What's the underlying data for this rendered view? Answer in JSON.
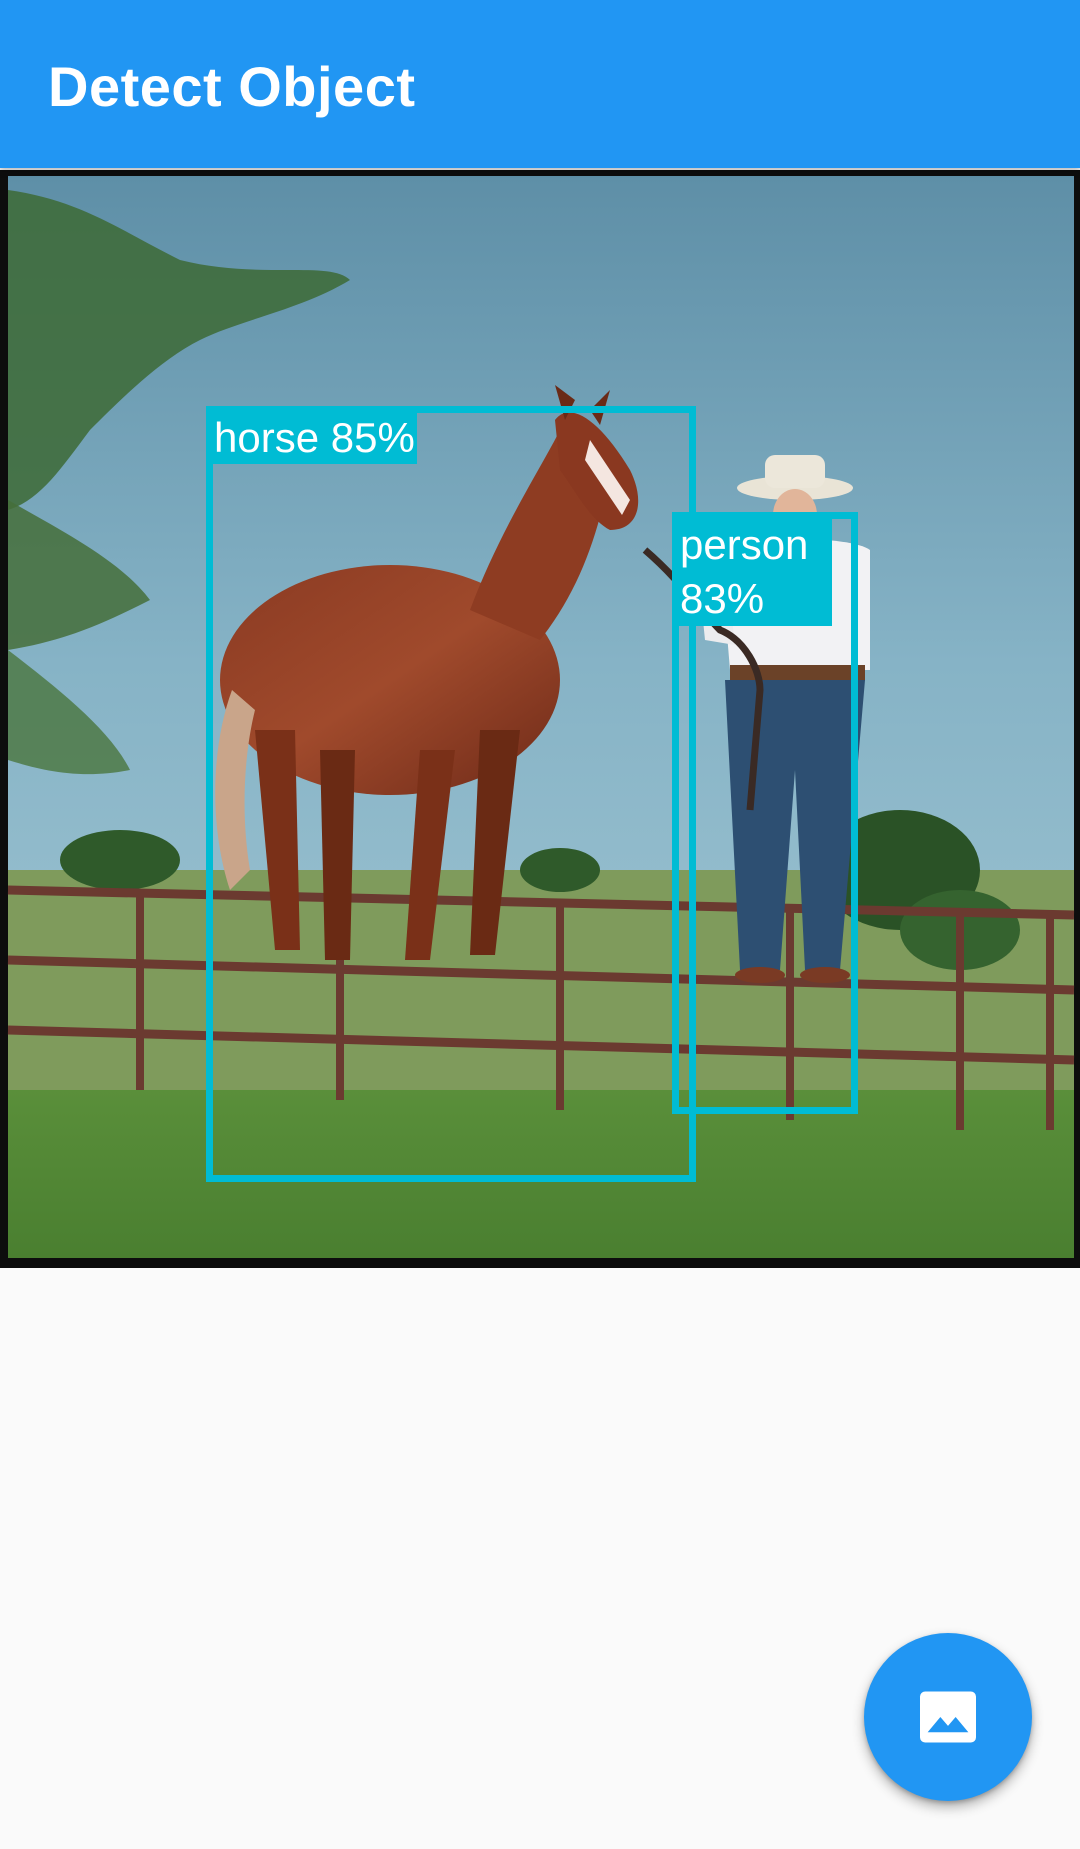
{
  "app_bar": {
    "title": "Detect Object",
    "color": "#2196f3"
  },
  "detections": [
    {
      "label": "horse 85%"
    },
    {
      "label": "person 83%"
    }
  ],
  "box_color": "#00bcd4",
  "fab": {
    "icon": "image-icon"
  }
}
